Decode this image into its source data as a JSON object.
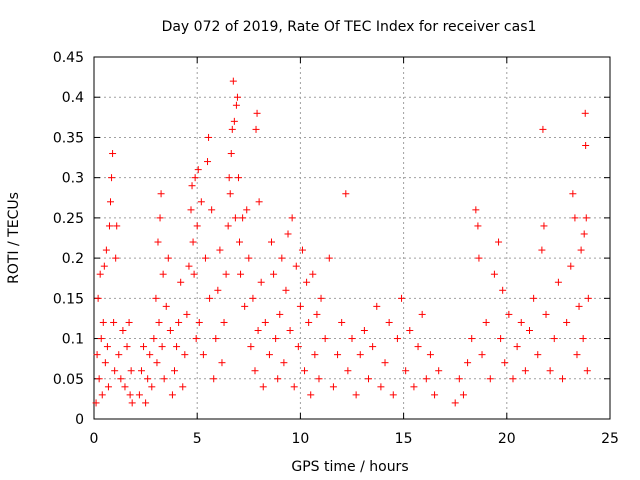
{
  "chart_data": {
    "type": "scatter",
    "title": "Day 072 of 2019, Rate Of TEC Index for receiver cas1",
    "xlabel": "GPS time / hours",
    "ylabel": "ROTI / TECUs",
    "xlim": [
      0,
      25
    ],
    "ylim": [
      0,
      0.45
    ],
    "xticks": [
      0,
      5,
      10,
      15,
      20,
      25
    ],
    "xtick_labels": [
      "0",
      "5",
      "10",
      "15",
      "20",
      "25"
    ],
    "yticks": [
      0,
      0.05,
      0.1,
      0.15,
      0.2,
      0.25,
      0.3,
      0.35,
      0.4,
      0.45
    ],
    "ytick_labels": [
      "0",
      "0.05",
      "0.1",
      "0.15",
      "0.2",
      "0.25",
      "0.3",
      "0.35",
      "0.4",
      "0.45"
    ],
    "grid": true,
    "marker": "+",
    "color": "#ff0000",
    "series": [
      {
        "name": "ROTI",
        "points": [
          [
            0.1,
            0.02
          ],
          [
            0.15,
            0.08
          ],
          [
            0.2,
            0.15
          ],
          [
            0.25,
            0.05
          ],
          [
            0.3,
            0.18
          ],
          [
            0.35,
            0.1
          ],
          [
            0.4,
            0.03
          ],
          [
            0.45,
            0.12
          ],
          [
            0.5,
            0.19
          ],
          [
            0.55,
            0.07
          ],
          [
            0.6,
            0.21
          ],
          [
            0.65,
            0.09
          ],
          [
            0.7,
            0.04
          ],
          [
            0.75,
            0.24
          ],
          [
            0.8,
            0.27
          ],
          [
            0.85,
            0.3
          ],
          [
            0.9,
            0.33
          ],
          [
            0.95,
            0.12
          ],
          [
            1.0,
            0.06
          ],
          [
            1.05,
            0.2
          ],
          [
            1.1,
            0.24
          ],
          [
            1.2,
            0.08
          ],
          [
            1.3,
            0.05
          ],
          [
            1.4,
            0.11
          ],
          [
            1.5,
            0.04
          ],
          [
            1.6,
            0.09
          ],
          [
            1.7,
            0.12
          ],
          [
            1.75,
            0.03
          ],
          [
            1.8,
            0.06
          ],
          [
            1.85,
            0.02
          ],
          [
            2.2,
            0.03
          ],
          [
            2.3,
            0.06
          ],
          [
            2.4,
            0.09
          ],
          [
            2.5,
            0.02
          ],
          [
            2.6,
            0.05
          ],
          [
            2.7,
            0.08
          ],
          [
            2.8,
            0.04
          ],
          [
            2.9,
            0.1
          ],
          [
            3.0,
            0.15
          ],
          [
            3.05,
            0.07
          ],
          [
            3.1,
            0.22
          ],
          [
            3.15,
            0.12
          ],
          [
            3.2,
            0.25
          ],
          [
            3.25,
            0.28
          ],
          [
            3.3,
            0.09
          ],
          [
            3.35,
            0.18
          ],
          [
            3.4,
            0.05
          ],
          [
            3.5,
            0.14
          ],
          [
            3.6,
            0.2
          ],
          [
            3.7,
            0.11
          ],
          [
            3.8,
            0.03
          ],
          [
            3.9,
            0.06
          ],
          [
            4.0,
            0.09
          ],
          [
            4.1,
            0.12
          ],
          [
            4.2,
            0.17
          ],
          [
            4.3,
            0.04
          ],
          [
            4.4,
            0.08
          ],
          [
            4.5,
            0.13
          ],
          [
            4.6,
            0.19
          ],
          [
            4.7,
            0.26
          ],
          [
            4.75,
            0.29
          ],
          [
            4.8,
            0.22
          ],
          [
            4.85,
            0.18
          ],
          [
            4.9,
            0.3
          ],
          [
            4.95,
            0.1
          ],
          [
            5.0,
            0.24
          ],
          [
            5.05,
            0.31
          ],
          [
            5.1,
            0.12
          ],
          [
            5.2,
            0.27
          ],
          [
            5.3,
            0.08
          ],
          [
            5.4,
            0.2
          ],
          [
            5.5,
            0.32
          ],
          [
            5.55,
            0.35
          ],
          [
            5.6,
            0.15
          ],
          [
            5.7,
            0.26
          ],
          [
            5.8,
            0.05
          ],
          [
            5.9,
            0.1
          ],
          [
            6.0,
            0.16
          ],
          [
            6.1,
            0.21
          ],
          [
            6.2,
            0.07
          ],
          [
            6.3,
            0.12
          ],
          [
            6.4,
            0.18
          ],
          [
            6.5,
            0.24
          ],
          [
            6.55,
            0.3
          ],
          [
            6.6,
            0.28
          ],
          [
            6.65,
            0.33
          ],
          [
            6.7,
            0.36
          ],
          [
            6.75,
            0.42
          ],
          [
            6.8,
            0.37
          ],
          [
            6.85,
            0.25
          ],
          [
            6.9,
            0.39
          ],
          [
            6.95,
            0.4
          ],
          [
            7.0,
            0.3
          ],
          [
            7.05,
            0.22
          ],
          [
            7.1,
            0.18
          ],
          [
            7.2,
            0.25
          ],
          [
            7.3,
            0.14
          ],
          [
            7.4,
            0.26
          ],
          [
            7.5,
            0.2
          ],
          [
            7.6,
            0.09
          ],
          [
            7.7,
            0.15
          ],
          [
            7.8,
            0.06
          ],
          [
            7.85,
            0.36
          ],
          [
            7.9,
            0.38
          ],
          [
            7.95,
            0.11
          ],
          [
            8.0,
            0.27
          ],
          [
            8.1,
            0.17
          ],
          [
            8.2,
            0.04
          ],
          [
            8.3,
            0.12
          ],
          [
            8.5,
            0.08
          ],
          [
            8.6,
            0.22
          ],
          [
            8.7,
            0.18
          ],
          [
            8.8,
            0.1
          ],
          [
            8.9,
            0.05
          ],
          [
            9.0,
            0.13
          ],
          [
            9.1,
            0.2
          ],
          [
            9.2,
            0.07
          ],
          [
            9.3,
            0.16
          ],
          [
            9.4,
            0.23
          ],
          [
            9.5,
            0.11
          ],
          [
            9.6,
            0.25
          ],
          [
            9.7,
            0.04
          ],
          [
            9.8,
            0.19
          ],
          [
            9.9,
            0.09
          ],
          [
            10.0,
            0.14
          ],
          [
            10.1,
            0.21
          ],
          [
            10.2,
            0.06
          ],
          [
            10.3,
            0.17
          ],
          [
            10.4,
            0.12
          ],
          [
            10.5,
            0.03
          ],
          [
            10.6,
            0.18
          ],
          [
            10.7,
            0.08
          ],
          [
            10.8,
            0.13
          ],
          [
            10.9,
            0.05
          ],
          [
            11.0,
            0.15
          ],
          [
            11.2,
            0.1
          ],
          [
            11.4,
            0.2
          ],
          [
            11.6,
            0.04
          ],
          [
            11.8,
            0.08
          ],
          [
            12.0,
            0.12
          ],
          [
            12.2,
            0.28
          ],
          [
            12.3,
            0.06
          ],
          [
            12.5,
            0.1
          ],
          [
            12.7,
            0.03
          ],
          [
            12.9,
            0.08
          ],
          [
            13.1,
            0.11
          ],
          [
            13.3,
            0.05
          ],
          [
            13.5,
            0.09
          ],
          [
            13.7,
            0.14
          ],
          [
            13.9,
            0.04
          ],
          [
            14.1,
            0.07
          ],
          [
            14.3,
            0.12
          ],
          [
            14.5,
            0.03
          ],
          [
            14.7,
            0.1
          ],
          [
            14.9,
            0.15
          ],
          [
            15.1,
            0.06
          ],
          [
            15.3,
            0.11
          ],
          [
            15.5,
            0.04
          ],
          [
            15.7,
            0.09
          ],
          [
            15.9,
            0.13
          ],
          [
            16.1,
            0.05
          ],
          [
            16.3,
            0.08
          ],
          [
            16.5,
            0.03
          ],
          [
            16.7,
            0.06
          ],
          [
            17.5,
            0.02
          ],
          [
            17.7,
            0.05
          ],
          [
            17.9,
            0.03
          ],
          [
            18.1,
            0.07
          ],
          [
            18.3,
            0.1
          ],
          [
            18.5,
            0.26
          ],
          [
            18.6,
            0.24
          ],
          [
            18.65,
            0.2
          ],
          [
            18.8,
            0.08
          ],
          [
            19.0,
            0.12
          ],
          [
            19.2,
            0.05
          ],
          [
            19.4,
            0.18
          ],
          [
            19.6,
            0.22
          ],
          [
            19.7,
            0.1
          ],
          [
            19.8,
            0.16
          ],
          [
            19.9,
            0.07
          ],
          [
            20.1,
            0.13
          ],
          [
            20.3,
            0.05
          ],
          [
            20.5,
            0.09
          ],
          [
            20.7,
            0.12
          ],
          [
            20.9,
            0.06
          ],
          [
            21.1,
            0.11
          ],
          [
            21.3,
            0.15
          ],
          [
            21.5,
            0.08
          ],
          [
            21.7,
            0.21
          ],
          [
            21.75,
            0.36
          ],
          [
            21.8,
            0.24
          ],
          [
            21.9,
            0.13
          ],
          [
            22.1,
            0.06
          ],
          [
            22.3,
            0.1
          ],
          [
            22.5,
            0.17
          ],
          [
            22.7,
            0.05
          ],
          [
            22.9,
            0.12
          ],
          [
            23.1,
            0.19
          ],
          [
            23.2,
            0.28
          ],
          [
            23.3,
            0.25
          ],
          [
            23.4,
            0.08
          ],
          [
            23.5,
            0.14
          ],
          [
            23.6,
            0.21
          ],
          [
            23.7,
            0.1
          ],
          [
            23.75,
            0.23
          ],
          [
            23.8,
            0.38
          ],
          [
            23.82,
            0.34
          ],
          [
            23.85,
            0.25
          ],
          [
            23.9,
            0.06
          ],
          [
            23.95,
            0.15
          ]
        ]
      }
    ]
  }
}
